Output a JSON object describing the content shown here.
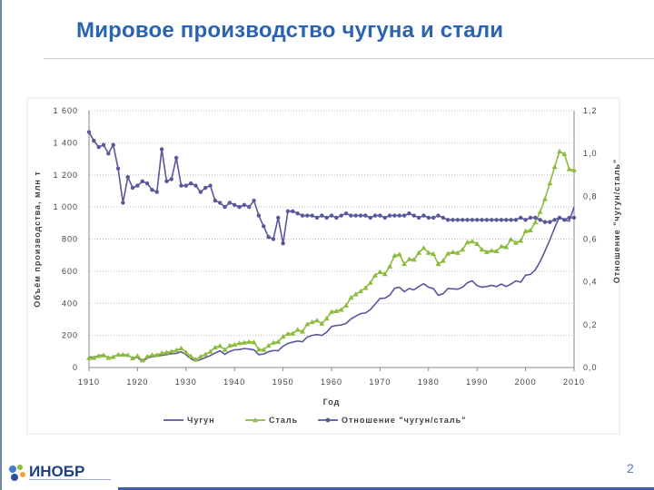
{
  "slide": {
    "title": "Мировое производство чугуна и стали",
    "page_number": "2",
    "logo_text": "ИНОБР"
  },
  "colors": {
    "pig_iron": "#58589a",
    "steel": "#8dbb3e",
    "ratio": "#58589a",
    "title": "#2a63b0"
  },
  "chart_data": {
    "type": "line",
    "xlabel": "Год",
    "ylabel": "Объём производства, млн т",
    "y2label": "Отношение \"чугун/сталь\"",
    "x_ticks": [
      "1910",
      "1920",
      "1930",
      "1940",
      "1950",
      "1960",
      "1970",
      "1980",
      "1990",
      "2000",
      "2010"
    ],
    "y_ticks": [
      "0",
      "200",
      "400",
      "600",
      "800",
      "1 000",
      "1 200",
      "1 400",
      "1 600"
    ],
    "y2_ticks": [
      "0,0",
      "0,2",
      "0,4",
      "0,6",
      "0,8",
      "1,0",
      "1,2"
    ],
    "xlim": [
      1910,
      2010
    ],
    "ylim": [
      0,
      1600
    ],
    "y2lim": [
      0,
      1.2
    ],
    "legend_position": "bottom",
    "series": [
      {
        "name": "Чугун",
        "axis": "left",
        "marker": "line",
        "x": [
          1910,
          1911,
          1912,
          1913,
          1914,
          1915,
          1916,
          1917,
          1918,
          1919,
          1920,
          1921,
          1922,
          1923,
          1924,
          1925,
          1926,
          1927,
          1928,
          1929,
          1930,
          1931,
          1932,
          1933,
          1934,
          1935,
          1936,
          1937,
          1938,
          1939,
          1940,
          1941,
          1942,
          1943,
          1944,
          1945,
          1946,
          1947,
          1948,
          1949,
          1950,
          1951,
          1952,
          1953,
          1954,
          1955,
          1956,
          1957,
          1958,
          1959,
          1960,
          1961,
          1962,
          1963,
          1964,
          1965,
          1966,
          1967,
          1968,
          1969,
          1970,
          1971,
          1972,
          1973,
          1974,
          1975,
          1976,
          1977,
          1978,
          1979,
          1980,
          1981,
          1982,
          1983,
          1984,
          1985,
          1986,
          1987,
          1988,
          1989,
          1990,
          1991,
          1992,
          1993,
          1994,
          1995,
          1996,
          1997,
          1998,
          1999,
          2000,
          2001,
          2002,
          2003,
          2004,
          2005,
          2006,
          2007,
          2008,
          2009,
          2010
        ],
        "values": [
          66,
          64,
          73,
          79,
          60,
          66,
          80,
          80,
          77,
          58,
          63,
          38,
          58,
          67,
          70,
          76,
          80,
          86,
          88,
          98,
          80,
          55,
          40,
          50,
          62,
          74,
          90,
          104,
          82,
          100,
          110,
          112,
          118,
          115,
          110,
          80,
          84,
          98,
          106,
          104,
          133,
          150,
          158,
          165,
          160,
          190,
          200,
          205,
          200,
          220,
          255,
          262,
          265,
          275,
          302,
          320,
          336,
          340,
          360,
          395,
          430,
          432,
          450,
          494,
          500,
          472,
          492,
          484,
          505,
          522,
          500,
          492,
          450,
          460,
          492,
          490,
          488,
          500,
          528,
          540,
          510,
          500,
          505,
          512,
          504,
          520,
          505,
          520,
          540,
          532,
          575,
          580,
          608,
          660,
          725,
          795,
          870,
          940,
          918,
          912,
          1000
        ]
      },
      {
        "name": "Сталь",
        "axis": "left",
        "marker": "triangle",
        "x": [
          1910,
          1911,
          1912,
          1913,
          1914,
          1915,
          1916,
          1917,
          1918,
          1919,
          1920,
          1921,
          1922,
          1923,
          1924,
          1925,
          1926,
          1927,
          1928,
          1929,
          1930,
          1931,
          1932,
          1933,
          1934,
          1935,
          1936,
          1937,
          1938,
          1939,
          1940,
          1941,
          1942,
          1943,
          1944,
          1945,
          1946,
          1947,
          1948,
          1949,
          1950,
          1951,
          1952,
          1953,
          1954,
          1955,
          1956,
          1957,
          1958,
          1959,
          1960,
          1961,
          1962,
          1963,
          1964,
          1965,
          1966,
          1967,
          1968,
          1969,
          1970,
          1971,
          1972,
          1973,
          1974,
          1975,
          1976,
          1977,
          1978,
          1979,
          1980,
          1981,
          1982,
          1983,
          1984,
          1985,
          1986,
          1987,
          1988,
          1989,
          1990,
          1991,
          1992,
          1993,
          1994,
          1995,
          1996,
          1997,
          1998,
          1999,
          2000,
          2001,
          2002,
          2003,
          2004,
          2005,
          2006,
          2007,
          2008,
          2009,
          2010
        ],
        "values": [
          60,
          60,
          72,
          76,
          60,
          66,
          80,
          80,
          78,
          58,
          72,
          44,
          68,
          78,
          78,
          90,
          94,
          100,
          108,
          120,
          95,
          70,
          50,
          68,
          82,
          99,
          125,
          135,
          110,
          137,
          142,
          152,
          155,
          160,
          157,
          113,
          111,
          136,
          155,
          160,
          192,
          210,
          212,
          235,
          224,
          270,
          283,
          293,
          273,
          306,
          347,
          352,
          360,
          386,
          435,
          456,
          475,
          496,
          528,
          574,
          595,
          582,
          630,
          697,
          705,
          645,
          675,
          672,
          715,
          745,
          715,
          708,
          645,
          665,
          710,
          719,
          714,
          735,
          780,
          786,
          770,
          735,
          720,
          728,
          725,
          755,
          750,
          798,
          777,
          790,
          850,
          855,
          904,
          970,
          1050,
          1148,
          1250,
          1346,
          1330,
          1236,
          1230
        ]
      },
      {
        "name": "Отношение \"чугун/сталь\"",
        "axis": "right",
        "marker": "circle",
        "x": [
          1910,
          1911,
          1912,
          1913,
          1914,
          1915,
          1916,
          1917,
          1918,
          1919,
          1920,
          1921,
          1922,
          1923,
          1924,
          1925,
          1926,
          1927,
          1928,
          1929,
          1930,
          1931,
          1932,
          1933,
          1934,
          1935,
          1936,
          1937,
          1938,
          1939,
          1940,
          1941,
          1942,
          1943,
          1944,
          1945,
          1946,
          1947,
          1948,
          1949,
          1950,
          1951,
          1952,
          1953,
          1954,
          1955,
          1956,
          1957,
          1958,
          1959,
          1960,
          1961,
          1962,
          1963,
          1964,
          1965,
          1966,
          1967,
          1968,
          1969,
          1970,
          1971,
          1972,
          1973,
          1974,
          1975,
          1976,
          1977,
          1978,
          1979,
          1980,
          1981,
          1982,
          1983,
          1984,
          1985,
          1986,
          1987,
          1988,
          1989,
          1990,
          1991,
          1992,
          1993,
          1994,
          1995,
          1996,
          1997,
          1998,
          1999,
          2000,
          2001,
          2002,
          2003,
          2004,
          2005,
          2006,
          2007,
          2008,
          2009,
          2010
        ],
        "values": [
          1.1,
          1.06,
          1.03,
          1.04,
          1.0,
          1.04,
          0.93,
          0.77,
          0.89,
          0.84,
          0.85,
          0.87,
          0.86,
          0.83,
          0.82,
          1.02,
          0.87,
          0.88,
          0.98,
          0.85,
          0.85,
          0.86,
          0.85,
          0.82,
          0.84,
          0.85,
          0.78,
          0.77,
          0.75,
          0.77,
          0.76,
          0.75,
          0.76,
          0.75,
          0.78,
          0.71,
          0.66,
          0.61,
          0.6,
          0.7,
          0.58,
          0.73,
          0.73,
          0.72,
          0.71,
          0.71,
          0.71,
          0.7,
          0.71,
          0.7,
          0.71,
          0.7,
          0.71,
          0.72,
          0.71,
          0.71,
          0.71,
          0.71,
          0.7,
          0.71,
          0.71,
          0.7,
          0.71,
          0.71,
          0.71,
          0.71,
          0.72,
          0.71,
          0.7,
          0.71,
          0.7,
          0.7,
          0.71,
          0.7,
          0.69,
          0.69,
          0.69,
          0.69,
          0.69,
          0.69,
          0.69,
          0.69,
          0.69,
          0.69,
          0.69,
          0.69,
          0.69,
          0.69,
          0.69,
          0.7,
          0.69,
          0.7,
          0.7,
          0.69,
          0.68,
          0.68,
          0.69,
          0.7,
          0.69,
          0.7,
          0.7
        ]
      }
    ]
  }
}
